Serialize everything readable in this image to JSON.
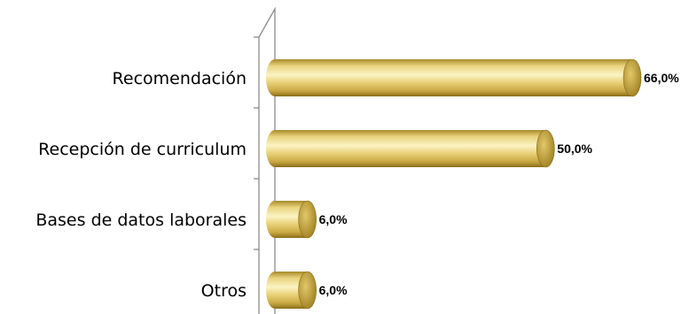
{
  "chart_data": {
    "type": "bar",
    "orientation": "horizontal",
    "style": "3d-cylinder",
    "categories": [
      "Recomendación",
      "Recepción de curriculum",
      "Bases de datos laborales",
      "Otros"
    ],
    "values": [
      66.0,
      50.0,
      6.0,
      6.0
    ],
    "value_labels": [
      "66,0%",
      "50,0%",
      "6,0%",
      "6,0%"
    ],
    "xlim": [
      0,
      66
    ],
    "grid": false,
    "legend": "none",
    "colors": {
      "bar_light": "#f9efb4",
      "bar_mid": "#e6cf73",
      "bar_dark": "#9c7d1c",
      "bar_cap": "#b8972e",
      "axis": "#8c8c8c"
    }
  }
}
